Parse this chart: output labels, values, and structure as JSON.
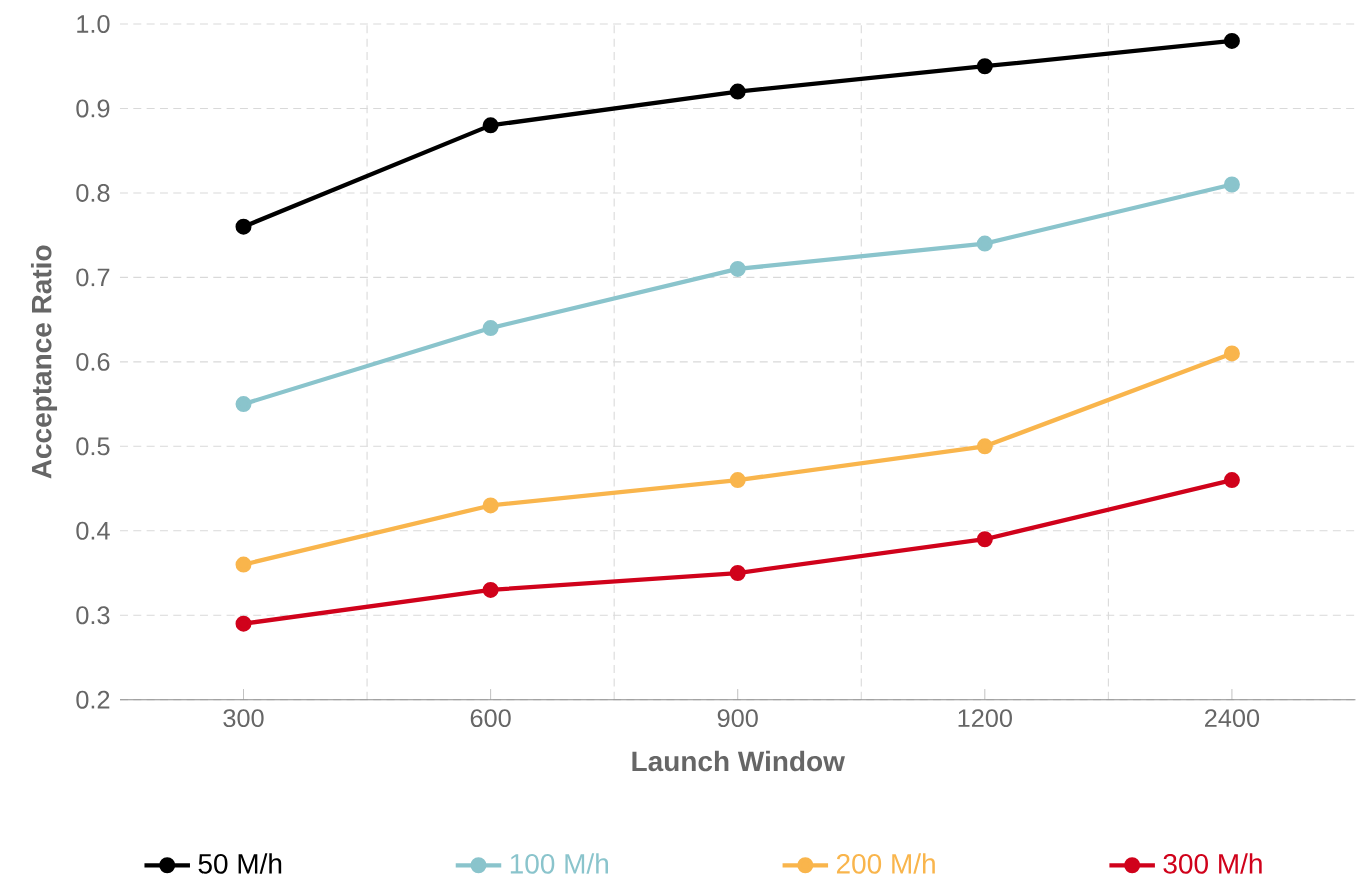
{
  "chart_data": {
    "type": "line",
    "xlabel": "Launch Window",
    "ylabel": "Acceptance Ratio",
    "categories": [
      "300",
      "600",
      "900",
      "1200",
      "2400"
    ],
    "ylim": [
      0.2,
      1.0
    ],
    "yticks": [
      {
        "value": 0.2,
        "label": "0.2"
      },
      {
        "value": 0.3,
        "label": "0.3"
      },
      {
        "value": 0.4,
        "label": "0.4"
      },
      {
        "value": 0.5,
        "label": "0.5"
      },
      {
        "value": 0.6,
        "label": "0.6"
      },
      {
        "value": 0.7,
        "label": "0.7"
      },
      {
        "value": 0.8,
        "label": "0.8"
      },
      {
        "value": 0.9,
        "label": "0.9"
      },
      {
        "value": 1.0,
        "label": "1.0"
      }
    ],
    "grid": true,
    "legend": "bottom",
    "marker": "circle",
    "line_style": "solid",
    "series": [
      {
        "name": "50 M/h",
        "color": "#000000",
        "values": [
          0.76,
          0.88,
          0.92,
          0.95,
          0.98
        ]
      },
      {
        "name": "100 M/h",
        "color": "#8ac4cc",
        "values": [
          0.55,
          0.64,
          0.71,
          0.74,
          0.81
        ]
      },
      {
        "name": "200 M/h",
        "color": "#f9b54c",
        "values": [
          0.36,
          0.43,
          0.46,
          0.5,
          0.61
        ]
      },
      {
        "name": "300 M/h",
        "color": "#d0021b",
        "values": [
          0.29,
          0.33,
          0.35,
          0.39,
          0.46
        ]
      }
    ]
  }
}
